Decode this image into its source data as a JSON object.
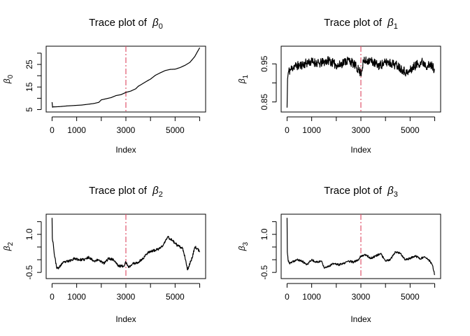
{
  "chart_data": [
    {
      "type": "line",
      "title_prefix": "Trace plot of ",
      "symbol": "β",
      "subscript": "0",
      "xlabel": "Index",
      "ylabel_symbol": "β",
      "ylabel_subscript": "0",
      "xlim": [
        0,
        6000
      ],
      "ylim": [
        5,
        32
      ],
      "xticks": [
        0,
        1000,
        2000,
        3000,
        4000,
        5000,
        6000
      ],
      "xtick_labels": [
        "0",
        "1000",
        "",
        "3000",
        "",
        "5000",
        ""
      ],
      "yticks": [
        5,
        10,
        15,
        20,
        25,
        30
      ],
      "ytick_labels": [
        "5",
        "",
        "15",
        "",
        "25",
        ""
      ],
      "vline_x": 3000,
      "series": [
        {
          "x": [
            0,
            20,
            40,
            100,
            300,
            600,
            900,
            1200,
            1500,
            1700,
            1900,
            2000,
            2200,
            2400,
            2600,
            2800,
            3000,
            3200,
            3400,
            3500,
            3700,
            3900,
            4000,
            4200,
            4400,
            4600,
            4800,
            5000,
            5200,
            5400,
            5600,
            5800,
            5900,
            6000
          ],
          "y": [
            8.3,
            6.0,
            6.2,
            6.2,
            6.3,
            6.6,
            6.8,
            7.0,
            7.4,
            7.7,
            8.2,
            9.3,
            9.8,
            10.3,
            11.2,
            11.6,
            12.6,
            13.2,
            14.2,
            15.3,
            16.6,
            17.9,
            18.5,
            20.2,
            21.3,
            22.3,
            22.8,
            22.9,
            23.6,
            24.6,
            25.9,
            28.5,
            30.5,
            32.4
          ]
        }
      ]
    },
    {
      "type": "line",
      "title_prefix": "Trace plot of ",
      "symbol": "β",
      "subscript": "1",
      "xlabel": "Index",
      "ylabel_symbol": "β",
      "ylabel_subscript": "1",
      "xlim": [
        0,
        6000
      ],
      "ylim": [
        0.83,
        0.99
      ],
      "xticks": [
        0,
        1000,
        2000,
        3000,
        4000,
        5000,
        6000
      ],
      "xtick_labels": [
        "0",
        "1000",
        "",
        "3000",
        "",
        "5000",
        ""
      ],
      "yticks": [
        0.85,
        0.9,
        0.95
      ],
      "ytick_labels": [
        "0.85",
        "",
        "0.95"
      ],
      "vline_x": 3000,
      "series": [
        {
          "noise": 0.012,
          "seed": 11,
          "x": [
            0,
            20,
            60,
            150,
            300,
            500,
            700,
            900,
            1100,
            1300,
            1500,
            1700,
            1900,
            2100,
            2300,
            2500,
            2700,
            2900,
            3000,
            3100,
            3300,
            3500,
            3700,
            3900,
            4100,
            4300,
            4500,
            4700,
            4900,
            5100,
            5300,
            5500,
            5700,
            5900,
            6000
          ],
          "y": [
            0.835,
            0.91,
            0.93,
            0.935,
            0.945,
            0.945,
            0.95,
            0.955,
            0.955,
            0.95,
            0.955,
            0.96,
            0.95,
            0.945,
            0.955,
            0.96,
            0.95,
            0.935,
            0.925,
            0.955,
            0.96,
            0.955,
            0.945,
            0.95,
            0.955,
            0.95,
            0.945,
            0.935,
            0.925,
            0.94,
            0.95,
            0.955,
            0.945,
            0.945,
            0.935
          ]
        }
      ]
    },
    {
      "type": "line",
      "title_prefix": "Trace plot of ",
      "symbol": "β",
      "subscript": "2",
      "xlabel": "Index",
      "ylabel_symbol": "β",
      "ylabel_subscript": "2",
      "xlim": [
        0,
        6000
      ],
      "ylim": [
        -0.65,
        1.7
      ],
      "xticks": [
        0,
        1000,
        2000,
        3000,
        4000,
        5000,
        6000
      ],
      "xtick_labels": [
        "0",
        "1000",
        "",
        "3000",
        "",
        "5000",
        ""
      ],
      "yticks": [
        -0.5,
        0,
        0.5,
        1.0,
        1.5
      ],
      "ytick_labels": [
        "-0.5",
        "",
        "",
        "1.0",
        ""
      ],
      "vline_x": 3000,
      "series": [
        {
          "noise": 0.05,
          "seed": 23,
          "x": [
            0,
            10,
            40,
            100,
            200,
            300,
            400,
            500,
            700,
            900,
            1100,
            1300,
            1500,
            1700,
            1900,
            2100,
            2300,
            2500,
            2700,
            2900,
            3000,
            3100,
            3300,
            3500,
            3700,
            3900,
            4100,
            4300,
            4500,
            4700,
            4900,
            5100,
            5300,
            5400,
            5500,
            5700,
            5800,
            5900,
            6000
          ],
          "y": [
            1.65,
            0.85,
            0.7,
            0.15,
            -0.35,
            -0.3,
            -0.15,
            -0.1,
            -0.05,
            0.05,
            0.0,
            0.0,
            0.1,
            -0.05,
            0.0,
            -0.15,
            0.05,
            0.0,
            -0.25,
            -0.25,
            -0.1,
            -0.3,
            -0.15,
            -0.1,
            0.05,
            0.3,
            0.35,
            0.4,
            0.55,
            0.9,
            0.75,
            0.55,
            0.45,
            0.1,
            -0.4,
            0.1,
            0.5,
            0.45,
            0.3
          ]
        }
      ]
    },
    {
      "type": "line",
      "title_prefix": "Trace plot of ",
      "symbol": "β",
      "subscript": "3",
      "xlabel": "Index",
      "ylabel_symbol": "β",
      "ylabel_subscript": "3",
      "xlim": [
        0,
        6000
      ],
      "ylim": [
        -0.65,
        1.7
      ],
      "xticks": [
        0,
        1000,
        2000,
        3000,
        4000,
        5000,
        6000
      ],
      "xtick_labels": [
        "0",
        "1000",
        "",
        "3000",
        "",
        "5000",
        ""
      ],
      "yticks": [
        -0.5,
        0,
        0.5,
        1.0,
        1.5
      ],
      "ytick_labels": [
        "-0.5",
        "",
        "",
        "1.0",
        ""
      ],
      "vline_x": 3000,
      "series": [
        {
          "noise": 0.04,
          "seed": 37,
          "x": [
            0,
            10,
            40,
            100,
            200,
            400,
            600,
            800,
            1000,
            1200,
            1400,
            1500,
            1700,
            1900,
            2100,
            2300,
            2500,
            2700,
            2900,
            3000,
            3200,
            3400,
            3600,
            3800,
            4000,
            4200,
            4400,
            4600,
            4800,
            5000,
            5200,
            5400,
            5600,
            5800,
            5900,
            6000
          ],
          "y": [
            1.65,
            0.3,
            0.0,
            -0.15,
            -0.1,
            0.0,
            -0.05,
            -0.2,
            0.0,
            -0.1,
            -0.05,
            -0.3,
            -0.25,
            -0.15,
            -0.2,
            -0.15,
            -0.05,
            -0.1,
            0.0,
            0.15,
            0.2,
            0.05,
            0.15,
            0.25,
            -0.05,
            0.0,
            0.3,
            0.25,
            0.0,
            0.05,
            0.15,
            0.05,
            0.1,
            -0.05,
            -0.2,
            -0.6
          ]
        }
      ]
    }
  ]
}
